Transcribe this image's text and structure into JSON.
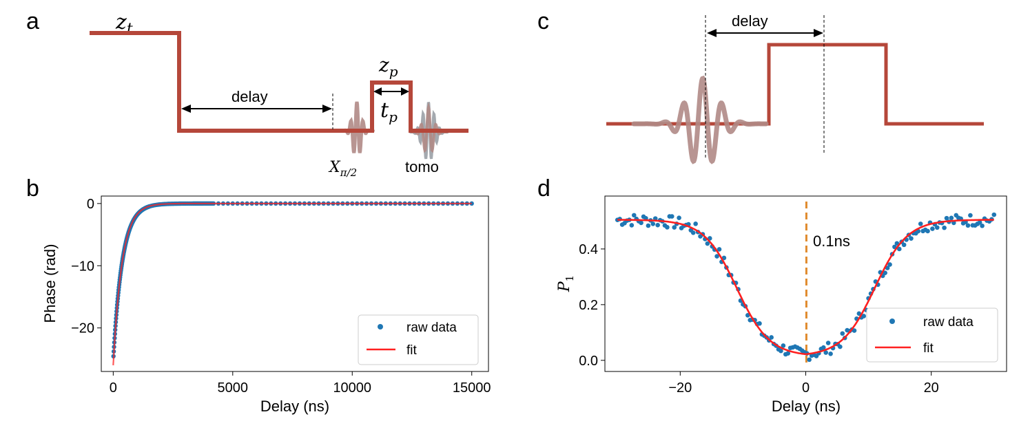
{
  "panels": {
    "a": {
      "label": "a",
      "zt": "z",
      "zt_sub": "t",
      "delay": "delay",
      "zp": "z",
      "zp_sub": "p",
      "tp": "t",
      "tp_sub": "p",
      "xpi": "X",
      "xpi_sub": "π/2",
      "tomo": "tomo"
    },
    "b": {
      "label": "b"
    },
    "c": {
      "label": "c",
      "delay": "delay"
    },
    "d": {
      "label": "d",
      "annotation": "0.1ns"
    }
  },
  "colors": {
    "pulse": "#b5473a",
    "wave": "#b08a86",
    "wave_tomo": "#9aa0a6",
    "points": "#1f77b4",
    "fit": "#ff2020",
    "dashed": "#e08a2c"
  },
  "chart_data": [
    {
      "panel": "b",
      "type": "scatter",
      "xlabel": "Delay (ns)",
      "ylabel": "Phase (rad)",
      "xlim": [
        -500,
        15700
      ],
      "ylim": [
        -27,
        1.2
      ],
      "xticks": [
        0,
        5000,
        10000,
        15000
      ],
      "yticks": [
        0,
        -10,
        -20
      ],
      "ytick_labels": [
        "0",
        "−10",
        "−20"
      ],
      "grid": false,
      "legend_position": "lower-right",
      "series": [
        {
          "name": "raw data",
          "kind": "points",
          "model": {
            "a": -25.2,
            "tau": 380,
            "x0": 10,
            "x1": 15000
          }
        },
        {
          "name": "fit",
          "kind": "line",
          "model": {
            "a": -26.0,
            "tau": 370,
            "x0": 0,
            "x1": 15000
          }
        }
      ]
    },
    {
      "panel": "d",
      "type": "scatter",
      "xlabel": "Delay (ns)",
      "ylabel": "P",
      "ylabel_sub": "1",
      "xlim": [
        -32,
        32
      ],
      "ylim": [
        -0.04,
        0.59
      ],
      "xticks": [
        -20,
        0,
        20
      ],
      "xtick_labels": [
        "−20",
        "0",
        "20"
      ],
      "yticks": [
        0.0,
        0.2,
        0.4
      ],
      "ytick_labels": [
        "0.0",
        "0.2",
        "0.4"
      ],
      "grid": false,
      "legend_position": "lower-right",
      "marker_x": 0.1,
      "series": [
        {
          "name": "raw data",
          "kind": "points",
          "x_range": [
            -30,
            30
          ],
          "count": 160
        },
        {
          "name": "fit",
          "kind": "line",
          "model": {
            "base": 0.49,
            "offset": 0.015,
            "center": 11,
            "width": 2.6
          }
        }
      ]
    }
  ]
}
